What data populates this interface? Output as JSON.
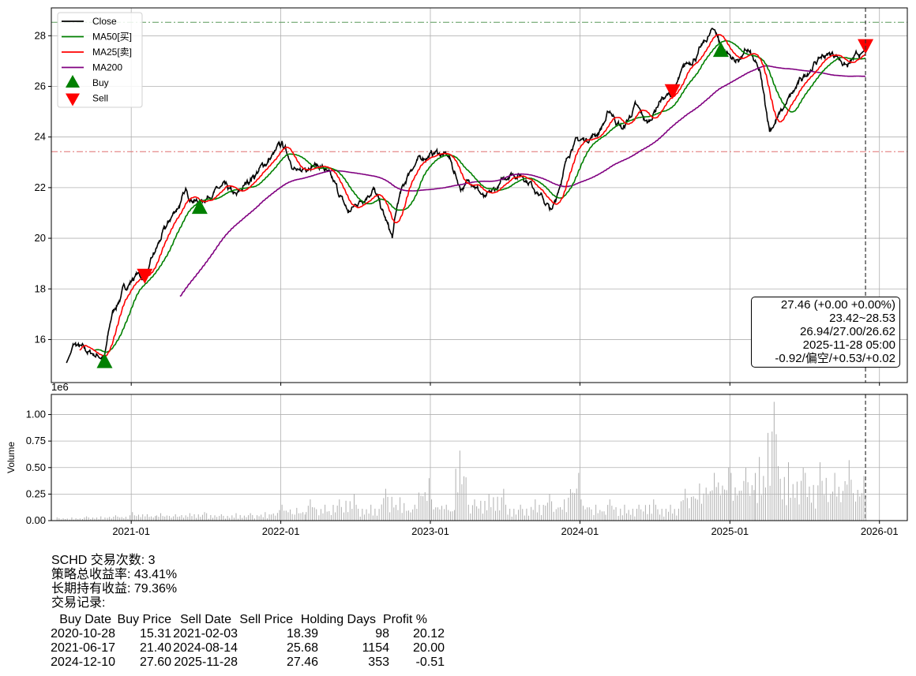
{
  "chart_data": [
    {
      "type": "line",
      "panel": "price",
      "ticker": "SCHD",
      "ylim": [
        14.3,
        29.1
      ],
      "xlim": [
        "2020-06-20",
        "2026-03-10"
      ],
      "grid": true,
      "yticks": [
        "16",
        "18",
        "20",
        "22",
        "24",
        "26",
        "28"
      ],
      "xticks": [
        "2021-01",
        "2022-01",
        "2023-01",
        "2024-01",
        "2025-01",
        "2026-01"
      ],
      "legend_placement": "top-left",
      "legend": [
        "Close",
        "MA50[买]",
        "MA25[卖]",
        "MA200",
        "Buy",
        "Sell"
      ],
      "colors": {
        "close": "#000000",
        "ma50": "#008000",
        "ma25": "#ff0000",
        "ma200": "#800080",
        "buy": "#008000",
        "sell": "#ff0000",
        "high_line": "#5a9a5a",
        "low_line": "#e07070"
      },
      "close_monthly": {
        "dates": [
          "2020-07-25",
          "2020-08-15",
          "2020-09-15",
          "2020-10-28",
          "2020-11-15",
          "2020-12-15",
          "2021-01-15",
          "2021-02-03",
          "2021-03-15",
          "2021-04-15",
          "2021-05-15",
          "2021-06-17",
          "2021-07-15",
          "2021-08-15",
          "2021-09-15",
          "2021-10-15",
          "2021-11-15",
          "2021-12-15",
          "2022-01-05",
          "2022-02-15",
          "2022-03-15",
          "2022-04-15",
          "2022-05-15",
          "2022-06-15",
          "2022-07-15",
          "2022-08-15",
          "2022-09-30",
          "2022-10-15",
          "2022-11-15",
          "2022-12-15",
          "2023-01-15",
          "2023-02-15",
          "2023-03-15",
          "2023-04-15",
          "2023-05-15",
          "2023-06-15",
          "2023-07-15",
          "2023-08-15",
          "2023-09-15",
          "2023-10-25",
          "2023-11-15",
          "2023-12-15",
          "2024-01-15",
          "2024-02-15",
          "2024-03-15",
          "2024-04-15",
          "2024-05-15",
          "2024-06-15",
          "2024-07-15",
          "2024-08-14",
          "2024-09-15",
          "2024-10-15",
          "2024-11-25",
          "2024-12-10",
          "2025-01-15",
          "2025-02-15",
          "2025-03-15",
          "2025-04-08",
          "2025-05-15",
          "2025-06-15",
          "2025-07-15",
          "2025-08-15",
          "2025-09-15",
          "2025-10-15",
          "2025-11-28"
        ],
        "values": [
          15.0,
          15.8,
          15.5,
          15.31,
          17.0,
          18.0,
          18.6,
          18.39,
          20.0,
          21.0,
          21.8,
          21.4,
          21.8,
          22.0,
          21.6,
          22.3,
          22.8,
          23.3,
          23.7,
          22.5,
          23.0,
          22.8,
          22.0,
          21.0,
          21.5,
          22.0,
          20.0,
          21.5,
          22.8,
          23.2,
          23.4,
          23.2,
          22.0,
          22.3,
          21.5,
          22.0,
          22.6,
          22.5,
          22.0,
          21.0,
          22.3,
          23.8,
          23.9,
          24.2,
          25.0,
          24.3,
          25.2,
          24.5,
          25.5,
          25.68,
          26.8,
          27.3,
          28.3,
          27.6,
          27.0,
          27.4,
          26.5,
          24.3,
          25.2,
          26.0,
          26.7,
          27.2,
          27.3,
          26.8,
          27.46
        ]
      },
      "high_line": 28.53,
      "low_line": 23.42,
      "last_date_line": "2025-11-28",
      "buy_signals": [
        {
          "date": "2020-10-28",
          "price": 15.31
        },
        {
          "date": "2021-06-17",
          "price": 21.4
        },
        {
          "date": "2024-12-10",
          "price": 27.6
        }
      ],
      "sell_signals": [
        {
          "date": "2021-02-03",
          "price": 18.39
        },
        {
          "date": "2024-08-14",
          "price": 25.68
        },
        {
          "date": "2025-11-28",
          "price": 27.46
        }
      ]
    },
    {
      "type": "bar",
      "panel": "volume",
      "ylabel": "Volume",
      "scale_label": "1e6",
      "ylim": [
        0,
        1.19
      ],
      "yticks": [
        "0.00",
        "0.25",
        "0.50",
        "0.75",
        "1.00"
      ],
      "color": "#b0b0b0",
      "months": [
        "2020-07",
        "2020-08",
        "2020-09",
        "2020-10",
        "2020-11",
        "2020-12",
        "2021-01",
        "2021-02",
        "2021-03",
        "2021-04",
        "2021-05",
        "2021-06",
        "2021-07",
        "2021-08",
        "2021-09",
        "2021-10",
        "2021-11",
        "2021-12",
        "2022-01",
        "2022-02",
        "2022-03",
        "2022-04",
        "2022-05",
        "2022-06",
        "2022-07",
        "2022-08",
        "2022-09",
        "2022-10",
        "2022-11",
        "2022-12",
        "2023-01",
        "2023-02",
        "2023-03",
        "2023-04",
        "2023-05",
        "2023-06",
        "2023-07",
        "2023-08",
        "2023-09",
        "2023-10",
        "2023-11",
        "2023-12",
        "2024-01",
        "2024-02",
        "2024-03",
        "2024-04",
        "2024-05",
        "2024-06",
        "2024-07",
        "2024-08",
        "2024-09",
        "2024-10",
        "2024-11",
        "2024-12",
        "2025-01",
        "2025-02",
        "2025-03",
        "2025-04",
        "2025-05",
        "2025-06",
        "2025-07",
        "2025-08",
        "2025-09",
        "2025-10",
        "2025-11"
      ],
      "peak_volume_1e6": [
        0.03,
        0.03,
        0.04,
        0.04,
        0.05,
        0.05,
        0.08,
        0.06,
        0.07,
        0.06,
        0.07,
        0.08,
        0.07,
        0.06,
        0.07,
        0.07,
        0.08,
        0.1,
        0.15,
        0.12,
        0.2,
        0.15,
        0.2,
        0.25,
        0.15,
        0.15,
        0.3,
        0.22,
        0.15,
        0.4,
        0.2,
        0.15,
        0.66,
        0.2,
        0.25,
        0.3,
        0.15,
        0.15,
        0.2,
        0.25,
        0.2,
        0.45,
        0.2,
        0.15,
        0.2,
        0.15,
        0.15,
        0.2,
        0.15,
        0.15,
        0.3,
        0.35,
        0.45,
        0.5,
        0.45,
        0.5,
        0.6,
        1.12,
        0.55,
        0.5,
        0.45,
        0.55,
        0.45,
        0.57,
        0.42
      ]
    }
  ],
  "infobox": {
    "lines": [
      "27.46 (+0.00 +0.00%)",
      "23.42~28.53",
      "26.94/27.00/26.62",
      "2025-11-28 05:00",
      "-0.92/偏空/+0.53/+0.02"
    ]
  },
  "summary": {
    "trade_count": "SCHD 交易次数: 3",
    "strategy_return": "策略总收益率: 43.41%",
    "buy_hold_return": "长期持有收益: 79.36%",
    "records_title": "交易记录:",
    "table": {
      "headers": [
        "Buy Date",
        "Buy Price",
        "Sell Date",
        "Sell Price",
        "Holding Days",
        "Profit %"
      ],
      "rows": [
        [
          "2020-10-28",
          "15.31",
          "2021-02-03",
          "18.39",
          "98",
          "20.12"
        ],
        [
          "2021-06-17",
          "21.40",
          "2024-08-14",
          "25.68",
          "1154",
          "20.00"
        ],
        [
          "2024-12-10",
          "27.60",
          "2025-11-28",
          "27.46",
          "353",
          "-0.51"
        ]
      ]
    }
  }
}
